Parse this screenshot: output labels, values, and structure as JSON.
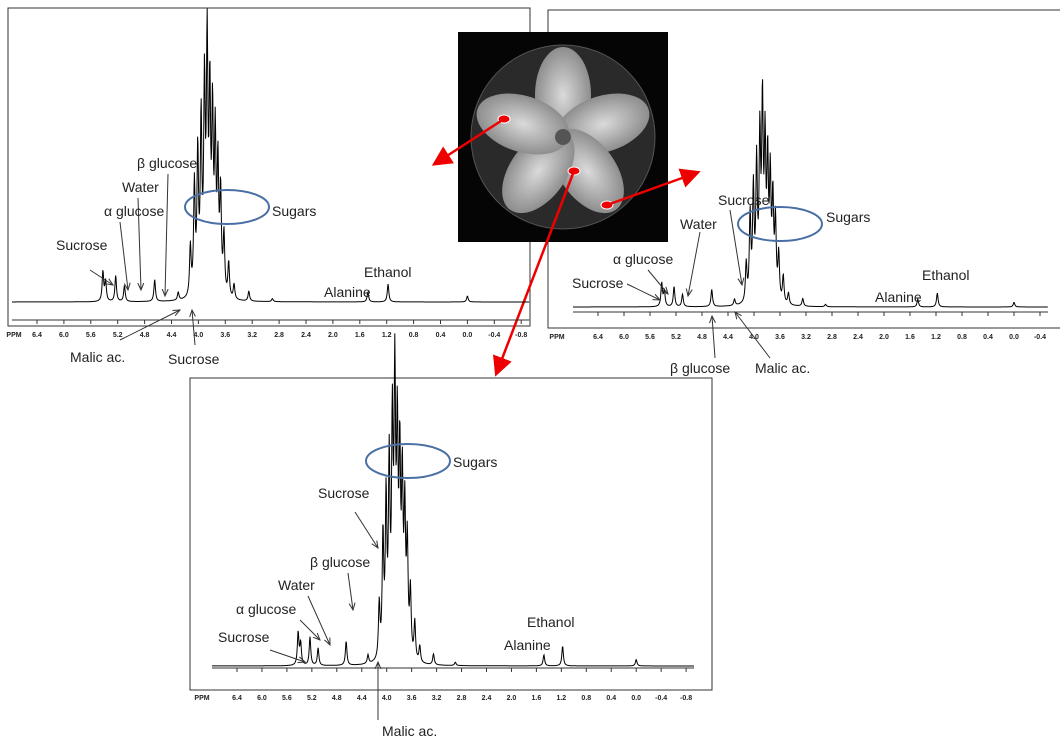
{
  "panels": [
    {
      "tick_labels": [
        "PPM",
        "6.4",
        "6.0",
        "5.6",
        "5.2",
        "4.8",
        "4.4",
        "4.0",
        "3.6",
        "3.2",
        "2.8",
        "2.4",
        "2.0",
        "1.6",
        "1.2",
        "0.8",
        "0.4",
        "0.0",
        "-0.4",
        "-0.8"
      ],
      "annotations": [
        "Sucrose",
        "α glucose",
        "Water",
        "β glucose",
        "Sugars",
        "Ethanol",
        "Alanine",
        "Malic ac.",
        "Sucrose"
      ]
    },
    {
      "tick_labels": [
        "PPM",
        "6.4",
        "6.0",
        "5.6",
        "5.2",
        "4.8",
        "4.4",
        "4.0",
        "3.6",
        "3.2",
        "2.8",
        "2.4",
        "2.0",
        "1.6",
        "1.2",
        "0.8",
        "0.4",
        "0.0",
        "-0.4"
      ],
      "annotations": [
        "Sucrose",
        "α glucose",
        "Water",
        "Sucrose",
        "Sugars",
        "Ethanol",
        "Alanine",
        "β glucose",
        "Malic ac."
      ]
    },
    {
      "tick_labels": [
        "PPM",
        "6.4",
        "6.0",
        "5.6",
        "5.2",
        "4.8",
        "4.4",
        "4.0",
        "3.6",
        "3.2",
        "2.8",
        "2.4",
        "2.0",
        "1.6",
        "1.2",
        "0.8",
        "0.4",
        "0.0",
        "-0.4",
        "-0.8"
      ],
      "annotations": [
        "Sucrose",
        "α glucose",
        "Water",
        "β glucose",
        "Sucrose",
        "Sugars",
        "Ethanol",
        "Alanine",
        "Malic ac."
      ]
    }
  ]
}
